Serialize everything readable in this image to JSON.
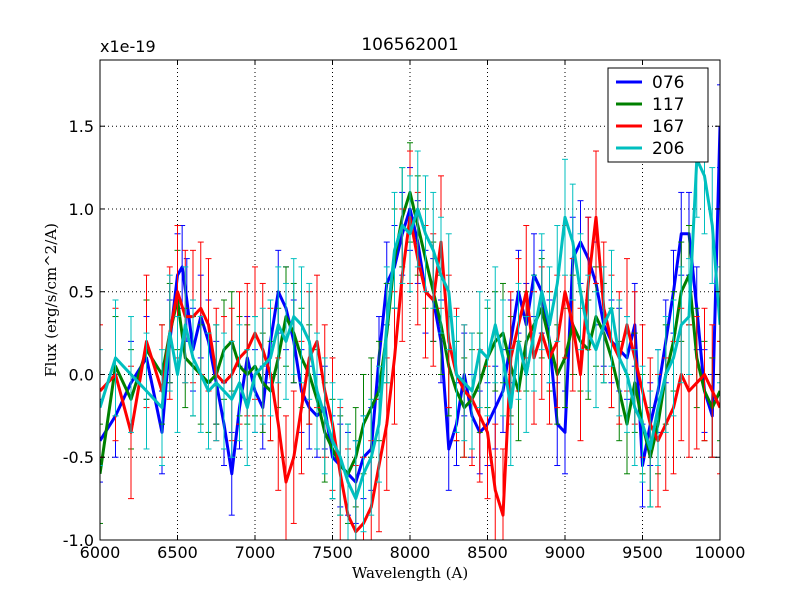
{
  "chart_data": {
    "type": "line",
    "title": "106562001",
    "xlabel": "Wavelength (A)",
    "ylabel": "Flux (erg/s/cm^2/A)",
    "y_scale_label": "x1e-19",
    "xlim": [
      6000,
      10000
    ],
    "ylim": [
      -1.0,
      1.9
    ],
    "x_ticks": [
      6000,
      6500,
      7000,
      7500,
      8000,
      8500,
      9000,
      9500,
      10000
    ],
    "x_tick_labels": [
      "6000",
      "6500",
      "7000",
      "7500",
      "8000",
      "8500",
      "9000",
      "9500",
      "10000"
    ],
    "y_ticks": [
      -1.0,
      -0.5,
      0.0,
      0.5,
      1.0,
      1.5
    ],
    "y_tick_labels": [
      "-1.0",
      "-0.5",
      "0.0",
      "0.5",
      "1.0",
      "1.5"
    ],
    "grid": true,
    "legend_position": "top-right",
    "series": [
      {
        "name": "076",
        "color": "#0000ff",
        "x": [
          6000,
          6100,
          6200,
          6300,
          6400,
          6450,
          6500,
          6530,
          6560,
          6600,
          6650,
          6700,
          6750,
          6800,
          6850,
          6900,
          6950,
          7000,
          7050,
          7100,
          7150,
          7200,
          7250,
          7300,
          7350,
          7400,
          7450,
          7500,
          7550,
          7600,
          7650,
          7700,
          7750,
          7800,
          7850,
          7900,
          7950,
          8000,
          8050,
          8100,
          8150,
          8200,
          8250,
          8300,
          8350,
          8400,
          8450,
          8500,
          8550,
          8600,
          8650,
          8700,
          8750,
          8800,
          8850,
          8900,
          8950,
          9000,
          9050,
          9100,
          9150,
          9200,
          9250,
          9300,
          9350,
          9400,
          9450,
          9500,
          9550,
          9600,
          9650,
          9700,
          9750,
          9800,
          9850,
          9900,
          9950,
          10000
        ],
        "values": [
          -0.4,
          -0.25,
          -0.05,
          0.1,
          -0.35,
          0.2,
          0.6,
          0.65,
          0.45,
          0.15,
          0.35,
          0.2,
          -0.05,
          -0.3,
          -0.6,
          -0.2,
          0.1,
          -0.1,
          -0.2,
          0.2,
          0.5,
          0.4,
          0.2,
          -0.1,
          -0.2,
          -0.25,
          -0.2,
          -0.5,
          -0.55,
          -0.6,
          -0.65,
          -0.5,
          -0.45,
          0.1,
          0.55,
          0.65,
          0.85,
          1.0,
          0.8,
          0.5,
          0.45,
          0.2,
          -0.45,
          -0.3,
          0.0,
          -0.25,
          -0.35,
          -0.3,
          -0.2,
          -0.1,
          0.2,
          0.5,
          0.3,
          0.6,
          0.5,
          0.2,
          -0.3,
          -0.35,
          0.7,
          0.8,
          0.7,
          0.55,
          0.3,
          0.2,
          0.15,
          0.1,
          0.3,
          -0.55,
          -0.3,
          -0.1,
          0.2,
          0.5,
          0.85,
          0.85,
          0.4,
          -0.1,
          -0.25,
          1.5
        ],
        "errors": 0.25
      },
      {
        "name": "117",
        "color": "#008000",
        "x": [
          6000,
          6100,
          6200,
          6300,
          6400,
          6450,
          6500,
          6550,
          6600,
          6650,
          6700,
          6750,
          6800,
          6850,
          6900,
          6950,
          7000,
          7050,
          7100,
          7150,
          7200,
          7250,
          7300,
          7350,
          7400,
          7450,
          7500,
          7550,
          7600,
          7650,
          7700,
          7750,
          7800,
          7850,
          7900,
          7950,
          8000,
          8050,
          8100,
          8150,
          8200,
          8250,
          8300,
          8350,
          8400,
          8450,
          8500,
          8550,
          8600,
          8650,
          8700,
          8750,
          8800,
          8850,
          8900,
          8950,
          9000,
          9050,
          9100,
          9150,
          9200,
          9250,
          9300,
          9350,
          9400,
          9450,
          9500,
          9550,
          9600,
          9650,
          9700,
          9750,
          9800,
          9850,
          9900,
          9950,
          10000
        ],
        "values": [
          -0.6,
          0.05,
          -0.15,
          0.15,
          0.0,
          0.25,
          0.45,
          0.1,
          0.05,
          0.0,
          -0.05,
          0.0,
          0.15,
          0.2,
          0.05,
          0.0,
          0.05,
          -0.05,
          -0.1,
          0.1,
          0.35,
          0.25,
          0.1,
          0.0,
          -0.15,
          -0.35,
          -0.45,
          -0.55,
          -0.6,
          -0.5,
          -0.3,
          -0.2,
          -0.1,
          0.25,
          0.7,
          0.95,
          1.1,
          0.9,
          0.7,
          0.5,
          0.3,
          0.05,
          -0.1,
          -0.2,
          -0.15,
          -0.05,
          0.1,
          0.2,
          0.25,
          0.05,
          -0.1,
          0.2,
          0.3,
          0.4,
          0.2,
          0.0,
          0.1,
          0.3,
          0.2,
          0.15,
          0.35,
          0.25,
          0.1,
          -0.1,
          -0.3,
          -0.05,
          -0.3,
          -0.5,
          -0.3,
          0.0,
          0.2,
          0.5,
          0.6,
          0.1,
          -0.1,
          -0.2,
          -0.1
        ],
        "errors": 0.3
      },
      {
        "name": "167",
        "color": "#ff0000",
        "x": [
          6000,
          6100,
          6200,
          6300,
          6400,
          6450,
          6500,
          6550,
          6600,
          6650,
          6700,
          6750,
          6800,
          6850,
          6900,
          6950,
          7000,
          7050,
          7100,
          7150,
          7200,
          7250,
          7300,
          7350,
          7400,
          7450,
          7500,
          7550,
          7600,
          7650,
          7700,
          7750,
          7800,
          7850,
          7900,
          7950,
          8000,
          8050,
          8100,
          8150,
          8200,
          8250,
          8300,
          8350,
          8400,
          8450,
          8500,
          8550,
          8600,
          8650,
          8700,
          8750,
          8800,
          8850,
          8900,
          8950,
          9000,
          9050,
          9100,
          9150,
          9200,
          9250,
          9300,
          9350,
          9400,
          9450,
          9500,
          9550,
          9600,
          9650,
          9700,
          9750,
          9800,
          9850,
          9900,
          9950,
          10000
        ],
        "values": [
          -0.1,
          0.0,
          -0.35,
          0.2,
          -0.1,
          0.25,
          0.5,
          0.35,
          0.35,
          0.4,
          0.3,
          0.0,
          -0.05,
          0.0,
          0.1,
          0.15,
          0.25,
          0.15,
          0.0,
          -0.3,
          -0.65,
          -0.5,
          -0.2,
          0.1,
          0.2,
          -0.1,
          -0.3,
          -0.6,
          -0.85,
          -0.95,
          -0.9,
          -0.8,
          -0.55,
          -0.3,
          0.1,
          0.6,
          0.95,
          0.7,
          0.5,
          0.45,
          0.8,
          0.2,
          0.0,
          -0.1,
          -0.15,
          -0.25,
          -0.35,
          -0.7,
          -0.85,
          0.1,
          0.3,
          0.5,
          0.1,
          0.25,
          0.1,
          0.2,
          0.5,
          0.3,
          0.0,
          0.55,
          0.95,
          0.4,
          0.2,
          0.1,
          0.3,
          0.1,
          -0.1,
          -0.3,
          -0.4,
          -0.3,
          -0.2,
          0.0,
          -0.1,
          -0.05,
          0.0,
          -0.1,
          -0.2
        ],
        "errors": 0.4
      },
      {
        "name": "206",
        "color": "#00bfbf",
        "x": [
          6000,
          6100,
          6200,
          6300,
          6400,
          6450,
          6500,
          6550,
          6600,
          6650,
          6700,
          6750,
          6800,
          6850,
          6900,
          6950,
          7000,
          7050,
          7100,
          7150,
          7200,
          7250,
          7300,
          7350,
          7400,
          7450,
          7500,
          7550,
          7600,
          7650,
          7700,
          7750,
          7800,
          7850,
          7900,
          7950,
          8000,
          8050,
          8100,
          8150,
          8200,
          8250,
          8300,
          8350,
          8400,
          8450,
          8500,
          8550,
          8600,
          8650,
          8700,
          8750,
          8800,
          8850,
          8900,
          8950,
          9000,
          9050,
          9100,
          9150,
          9200,
          9250,
          9300,
          9350,
          9400,
          9450,
          9500,
          9550,
          9600,
          9650,
          9700,
          9750,
          9800,
          9850,
          9900,
          9950,
          10000
        ],
        "values": [
          -0.2,
          0.1,
          0.0,
          -0.1,
          -0.2,
          0.25,
          0.0,
          0.3,
          0.1,
          0.0,
          -0.1,
          -0.05,
          -0.1,
          -0.15,
          -0.05,
          -0.2,
          0.0,
          0.05,
          0.1,
          0.3,
          0.2,
          0.35,
          0.3,
          0.2,
          -0.1,
          -0.25,
          -0.4,
          -0.5,
          -0.65,
          -0.75,
          -0.6,
          -0.5,
          -0.3,
          0.3,
          0.75,
          0.9,
          0.85,
          1.0,
          0.85,
          0.75,
          0.6,
          0.5,
          0.0,
          -0.05,
          -0.1,
          0.15,
          0.1,
          0.3,
          0.1,
          -0.2,
          0.2,
          0.0,
          0.25,
          0.5,
          0.3,
          0.55,
          0.95,
          0.8,
          0.5,
          0.25,
          0.15,
          0.3,
          0.4,
          0.1,
          0.0,
          -0.2,
          -0.3,
          -0.45,
          -0.2,
          0.0,
          0.1,
          0.3,
          0.35,
          1.3,
          1.2,
          0.9,
          0.3
        ],
        "errors": 0.35
      }
    ]
  }
}
